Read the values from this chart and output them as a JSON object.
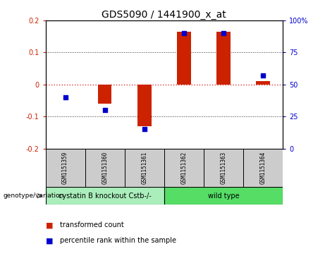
{
  "title": "GDS5090 / 1441900_x_at",
  "samples": [
    "GSM1151359",
    "GSM1151360",
    "GSM1151361",
    "GSM1151362",
    "GSM1151363",
    "GSM1151364"
  ],
  "transformed_counts": [
    0.0,
    -0.06,
    -0.13,
    0.165,
    0.165,
    0.01
  ],
  "percentile_ranks": [
    40,
    30,
    15,
    90,
    90,
    57
  ],
  "ylim_left": [
    -0.2,
    0.2
  ],
  "ylim_right": [
    0,
    100
  ],
  "yticks_left": [
    -0.2,
    -0.1,
    0.0,
    0.1,
    0.2
  ],
  "yticks_right": [
    0,
    25,
    50,
    75,
    100
  ],
  "ytick_labels_left": [
    "-0.2",
    "-0.1",
    "0",
    "0.1",
    "0.2"
  ],
  "ytick_labels_right": [
    "0",
    "25",
    "50",
    "75",
    "100%"
  ],
  "bar_color": "#CC2200",
  "dot_color": "#0000CC",
  "genotype_groups": [
    {
      "label": "cystatin B knockout Cstb-/-",
      "samples": [
        0,
        1,
        2
      ],
      "color": "#AAEEBB"
    },
    {
      "label": "wild type",
      "samples": [
        3,
        4,
        5
      ],
      "color": "#55DD66"
    }
  ],
  "genotype_label": "genotype/variation",
  "legend_bar_label": "transformed count",
  "legend_dot_label": "percentile rank within the sample",
  "bar_width": 0.35,
  "hline_color": "#DD3333",
  "grid_color": "#333333",
  "sample_box_color": "#CCCCCC",
  "title_fontsize": 10,
  "tick_fontsize": 7,
  "legend_fontsize": 7,
  "geno_fontsize": 7,
  "sample_fontsize": 5.5
}
